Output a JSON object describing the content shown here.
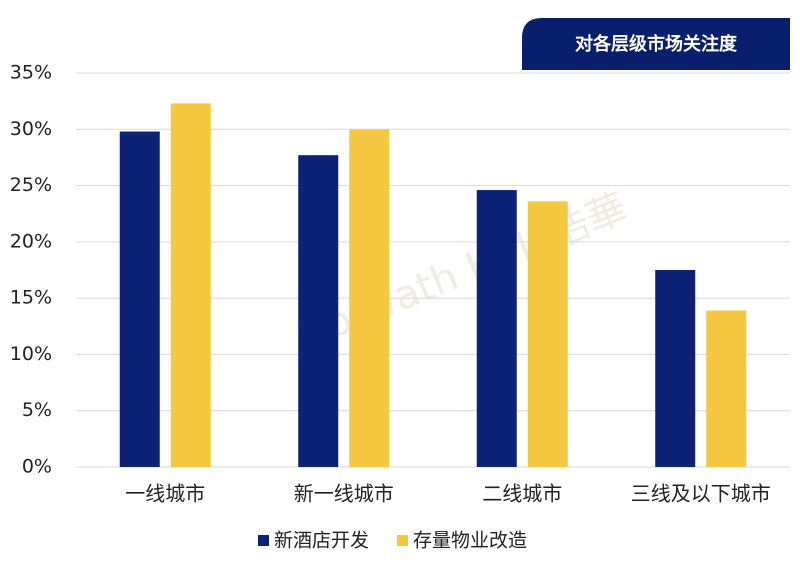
{
  "chart_data": {
    "type": "bar",
    "title": "对各层级市场关注度",
    "watermark": "Horwath HTL 浩華",
    "categories": [
      "一线城市",
      "新一线城市",
      "二线城市",
      "三线及以下城市"
    ],
    "series": [
      {
        "name": "新酒店开发",
        "color": "#0d2175",
        "values": [
          29.8,
          27.7,
          24.6,
          17.5
        ]
      },
      {
        "name": "存量物业改造",
        "color": "#f5c842",
        "values": [
          32.3,
          30.0,
          23.6,
          13.9
        ]
      }
    ],
    "ylim": [
      0,
      35
    ],
    "yticks": [
      {
        "value": 0,
        "label": "0%"
      },
      {
        "value": 5,
        "label": "5%"
      },
      {
        "value": 10,
        "label": "10%"
      },
      {
        "value": 15,
        "label": "15%"
      },
      {
        "value": 20,
        "label": "20%"
      },
      {
        "value": 25,
        "label": "25%"
      },
      {
        "value": 30,
        "label": "30%"
      },
      {
        "value": 35,
        "label": "35%"
      }
    ],
    "grid": true
  }
}
